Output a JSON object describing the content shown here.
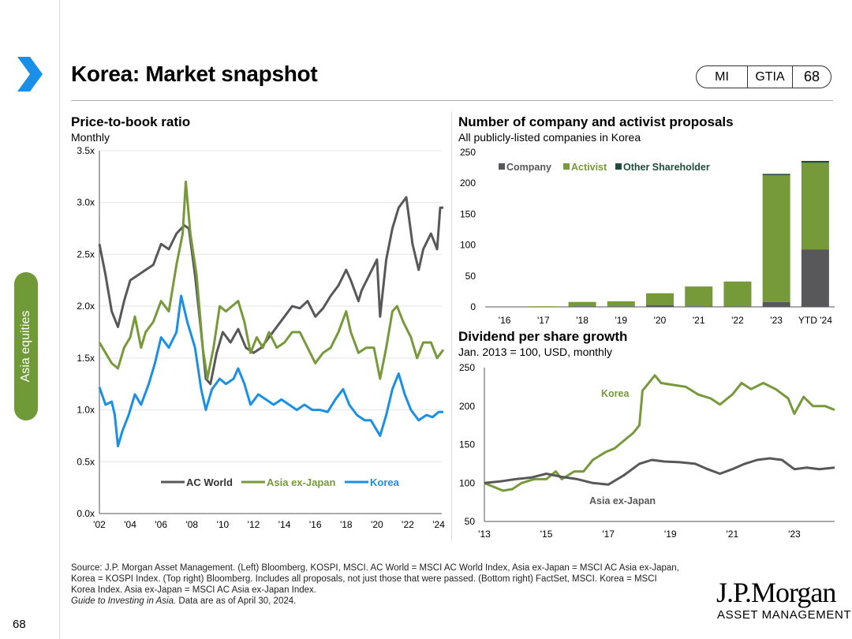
{
  "header": {
    "title": "Korea: Market snapshot",
    "tags": [
      "MI",
      "GTIA",
      "68"
    ]
  },
  "side_tab": {
    "label": "Asia equities"
  },
  "page_number": "68",
  "colors": {
    "ac_world": "#58585a",
    "asia_ex_japan": "#76993a",
    "korea": "#1a8fe8",
    "company": "#58585a",
    "activist": "#76993a",
    "other": "#1e4d3a",
    "side_tab": "#6f9a37",
    "chevron": "#1a8fe8"
  },
  "charts_text": {
    "pb": {
      "title": "Price-to-book ratio",
      "subtitle": "Monthly"
    },
    "proposals": {
      "title": "Number of company and activist proposals",
      "subtitle": "All publicly-listed companies in Korea"
    },
    "dps": {
      "title": "Dividend per share growth",
      "subtitle": "Jan. 2013 = 100, USD, monthly"
    }
  },
  "chart_data": [
    {
      "id": "pb",
      "type": "line",
      "title": "Price-to-book ratio",
      "subtitle": "Monthly",
      "y_tick_labels": [
        "0.0x",
        "0.5x",
        "1.0x",
        "1.5x",
        "2.0x",
        "2.5x",
        "3.0x",
        "3.5x"
      ],
      "ylim": [
        0,
        3.5
      ],
      "xlim": [
        2002,
        2024.2
      ],
      "x_tick_labels": [
        "'02",
        "'04",
        "'06",
        "'08",
        "'10",
        "'12",
        "'14",
        "'16",
        "'18",
        "'20",
        "'22",
        "'24"
      ],
      "legend": [
        "AC World",
        "Asia ex-Japan",
        "Korea"
      ],
      "series": [
        {
          "name": "AC World",
          "color": "#58585a",
          "points": [
            [
              2002,
              2.6
            ],
            [
              2002.4,
              2.3
            ],
            [
              2002.8,
              1.95
            ],
            [
              2003.2,
              1.8
            ],
            [
              2003.6,
              2.05
            ],
            [
              2004,
              2.25
            ],
            [
              2004.5,
              2.3
            ],
            [
              2005,
              2.35
            ],
            [
              2005.5,
              2.4
            ],
            [
              2006,
              2.6
            ],
            [
              2006.5,
              2.55
            ],
            [
              2007,
              2.7
            ],
            [
              2007.5,
              2.78
            ],
            [
              2007.8,
              2.75
            ],
            [
              2008.2,
              2.3
            ],
            [
              2008.6,
              1.75
            ],
            [
              2008.9,
              1.3
            ],
            [
              2009.2,
              1.25
            ],
            [
              2009.6,
              1.55
            ],
            [
              2010,
              1.75
            ],
            [
              2010.5,
              1.65
            ],
            [
              2011,
              1.78
            ],
            [
              2011.5,
              1.6
            ],
            [
              2012,
              1.55
            ],
            [
              2012.5,
              1.6
            ],
            [
              2013,
              1.7
            ],
            [
              2013.5,
              1.8
            ],
            [
              2014,
              1.9
            ],
            [
              2014.5,
              2.0
            ],
            [
              2015,
              1.98
            ],
            [
              2015.5,
              2.05
            ],
            [
              2016,
              1.9
            ],
            [
              2016.5,
              1.98
            ],
            [
              2017,
              2.1
            ],
            [
              2017.5,
              2.2
            ],
            [
              2018,
              2.35
            ],
            [
              2018.3,
              2.25
            ],
            [
              2018.8,
              2.05
            ],
            [
              2019,
              2.15
            ],
            [
              2019.5,
              2.3
            ],
            [
              2020,
              2.45
            ],
            [
              2020.2,
              1.9
            ],
            [
              2020.6,
              2.45
            ],
            [
              2021,
              2.75
            ],
            [
              2021.4,
              2.95
            ],
            [
              2021.9,
              3.05
            ],
            [
              2022.3,
              2.6
            ],
            [
              2022.7,
              2.35
            ],
            [
              2023,
              2.55
            ],
            [
              2023.5,
              2.7
            ],
            [
              2023.9,
              2.55
            ],
            [
              2024.1,
              2.95
            ],
            [
              2024.3,
              2.95
            ]
          ]
        },
        {
          "name": "Asia ex-Japan",
          "color": "#76993a",
          "points": [
            [
              2002,
              1.65
            ],
            [
              2002.4,
              1.55
            ],
            [
              2002.8,
              1.45
            ],
            [
              2003.2,
              1.4
            ],
            [
              2003.6,
              1.6
            ],
            [
              2004,
              1.7
            ],
            [
              2004.3,
              1.9
            ],
            [
              2004.7,
              1.6
            ],
            [
              2005,
              1.75
            ],
            [
              2005.5,
              1.85
            ],
            [
              2006,
              2.05
            ],
            [
              2006.5,
              1.95
            ],
            [
              2007,
              2.4
            ],
            [
              2007.4,
              2.7
            ],
            [
              2007.6,
              3.2
            ],
            [
              2007.9,
              2.7
            ],
            [
              2008.3,
              2.3
            ],
            [
              2008.7,
              1.6
            ],
            [
              2009,
              1.3
            ],
            [
              2009.4,
              1.6
            ],
            [
              2009.8,
              2.0
            ],
            [
              2010.2,
              1.95
            ],
            [
              2010.6,
              2.0
            ],
            [
              2011,
              2.05
            ],
            [
              2011.4,
              1.85
            ],
            [
              2011.8,
              1.55
            ],
            [
              2012.2,
              1.7
            ],
            [
              2012.6,
              1.6
            ],
            [
              2013,
              1.75
            ],
            [
              2013.5,
              1.6
            ],
            [
              2014,
              1.65
            ],
            [
              2014.5,
              1.75
            ],
            [
              2015,
              1.75
            ],
            [
              2015.5,
              1.6
            ],
            [
              2016,
              1.45
            ],
            [
              2016.5,
              1.55
            ],
            [
              2017,
              1.6
            ],
            [
              2017.5,
              1.75
            ],
            [
              2018,
              1.95
            ],
            [
              2018.3,
              1.75
            ],
            [
              2018.8,
              1.55
            ],
            [
              2019.3,
              1.6
            ],
            [
              2019.8,
              1.6
            ],
            [
              2020.2,
              1.3
            ],
            [
              2020.6,
              1.6
            ],
            [
              2021,
              1.95
            ],
            [
              2021.3,
              2.0
            ],
            [
              2021.7,
              1.85
            ],
            [
              2022.2,
              1.7
            ],
            [
              2022.6,
              1.5
            ],
            [
              2023,
              1.65
            ],
            [
              2023.5,
              1.65
            ],
            [
              2023.9,
              1.5
            ],
            [
              2024.3,
              1.58
            ]
          ]
        },
        {
          "name": "Korea",
          "color": "#1a8fe8",
          "points": [
            [
              2002,
              1.22
            ],
            [
              2002.4,
              1.05
            ],
            [
              2002.8,
              1.08
            ],
            [
              2003,
              0.95
            ],
            [
              2003.2,
              0.65
            ],
            [
              2003.5,
              0.8
            ],
            [
              2003.9,
              0.95
            ],
            [
              2004.3,
              1.15
            ],
            [
              2004.7,
              1.05
            ],
            [
              2005.2,
              1.25
            ],
            [
              2005.6,
              1.45
            ],
            [
              2006,
              1.7
            ],
            [
              2006.5,
              1.6
            ],
            [
              2007,
              1.75
            ],
            [
              2007.3,
              2.1
            ],
            [
              2007.7,
              1.85
            ],
            [
              2008.2,
              1.6
            ],
            [
              2008.6,
              1.2
            ],
            [
              2008.9,
              1.0
            ],
            [
              2009.3,
              1.2
            ],
            [
              2009.8,
              1.3
            ],
            [
              2010.2,
              1.25
            ],
            [
              2010.7,
              1.3
            ],
            [
              2011,
              1.4
            ],
            [
              2011.4,
              1.25
            ],
            [
              2011.8,
              1.05
            ],
            [
              2012.3,
              1.15
            ],
            [
              2012.8,
              1.1
            ],
            [
              2013.3,
              1.05
            ],
            [
              2013.8,
              1.1
            ],
            [
              2014.3,
              1.05
            ],
            [
              2014.8,
              1.0
            ],
            [
              2015.3,
              1.05
            ],
            [
              2015.8,
              1.0
            ],
            [
              2016.3,
              1.0
            ],
            [
              2016.8,
              0.98
            ],
            [
              2017.3,
              1.1
            ],
            [
              2017.8,
              1.2
            ],
            [
              2018.2,
              1.05
            ],
            [
              2018.7,
              0.95
            ],
            [
              2019.2,
              0.9
            ],
            [
              2019.6,
              0.9
            ],
            [
              2020.2,
              0.75
            ],
            [
              2020.6,
              0.95
            ],
            [
              2021,
              1.2
            ],
            [
              2021.4,
              1.35
            ],
            [
              2021.8,
              1.15
            ],
            [
              2022.2,
              1.0
            ],
            [
              2022.7,
              0.9
            ],
            [
              2023.2,
              0.95
            ],
            [
              2023.6,
              0.93
            ],
            [
              2024,
              0.98
            ],
            [
              2024.3,
              0.98
            ]
          ]
        }
      ]
    },
    {
      "id": "proposals",
      "type": "bar",
      "title": "Number of company and activist proposals",
      "subtitle": "All publicly-listed companies in Korea",
      "categories": [
        "'16",
        "'17",
        "'18",
        "'19",
        "'20",
        "'21",
        "'22",
        "'23",
        "YTD '24"
      ],
      "ylim": [
        0,
        250
      ],
      "y_tick_labels": [
        "0",
        "50",
        "100",
        "150",
        "200",
        "250"
      ],
      "series": [
        {
          "name": "Company",
          "color": "#58585a",
          "values": [
            0,
            0,
            1,
            1,
            3,
            1,
            1,
            8,
            93
          ]
        },
        {
          "name": "Activist",
          "color": "#76993a",
          "values": [
            0,
            1,
            7,
            8,
            19,
            32,
            40,
            205,
            140
          ]
        },
        {
          "name": "Other Shareholder",
          "color": "#1e4d3a",
          "values": [
            0,
            0,
            0,
            0,
            0,
            0,
            0,
            2,
            3
          ]
        }
      ]
    },
    {
      "id": "dps",
      "type": "line",
      "title": "Dividend per share growth",
      "subtitle": "Jan. 2013 = 100, USD, monthly",
      "ylim": [
        50,
        250
      ],
      "y_tick_labels": [
        "50",
        "100",
        "150",
        "200",
        "250"
      ],
      "xlim": [
        2013,
        2024.3
      ],
      "x_tick_labels": [
        "'13",
        "'15",
        "'17",
        "'19",
        "'21",
        "'23"
      ],
      "annotations": [
        "Korea",
        "Asia ex-Japan"
      ],
      "series": [
        {
          "name": "Korea",
          "color": "#76993a",
          "points": [
            [
              2013,
              100
            ],
            [
              2013.3,
              95
            ],
            [
              2013.6,
              90
            ],
            [
              2013.9,
              92
            ],
            [
              2014.2,
              100
            ],
            [
              2014.6,
              105
            ],
            [
              2015,
              105
            ],
            [
              2015.3,
              115
            ],
            [
              2015.5,
              105
            ],
            [
              2015.9,
              115
            ],
            [
              2016.2,
              115
            ],
            [
              2016.5,
              130
            ],
            [
              2016.9,
              140
            ],
            [
              2017.2,
              145
            ],
            [
              2017.5,
              155
            ],
            [
              2017.8,
              165
            ],
            [
              2018,
              175
            ],
            [
              2018.1,
              220
            ],
            [
              2018.5,
              240
            ],
            [
              2018.7,
              230
            ],
            [
              2019,
              228
            ],
            [
              2019.5,
              225
            ],
            [
              2019.9,
              215
            ],
            [
              2020.3,
              210
            ],
            [
              2020.6,
              202
            ],
            [
              2021,
              215
            ],
            [
              2021.3,
              230
            ],
            [
              2021.6,
              222
            ],
            [
              2022,
              230
            ],
            [
              2022.4,
              222
            ],
            [
              2022.8,
              210
            ],
            [
              2023,
              190
            ],
            [
              2023.3,
              212
            ],
            [
              2023.6,
              200
            ],
            [
              2024,
              200
            ],
            [
              2024.3,
              195
            ]
          ]
        },
        {
          "name": "Asia ex-Japan",
          "color": "#58585a",
          "points": [
            [
              2013,
              100
            ],
            [
              2013.5,
              102
            ],
            [
              2014,
              105
            ],
            [
              2014.5,
              107
            ],
            [
              2015,
              112
            ],
            [
              2015.5,
              108
            ],
            [
              2016,
              105
            ],
            [
              2016.5,
              100
            ],
            [
              2017,
              98
            ],
            [
              2017.5,
              110
            ],
            [
              2018,
              125
            ],
            [
              2018.4,
              130
            ],
            [
              2018.8,
              128
            ],
            [
              2019.3,
              127
            ],
            [
              2019.8,
              125
            ],
            [
              2020.2,
              118
            ],
            [
              2020.6,
              112
            ],
            [
              2021,
              118
            ],
            [
              2021.4,
              125
            ],
            [
              2021.8,
              130
            ],
            [
              2022.2,
              132
            ],
            [
              2022.6,
              130
            ],
            [
              2023,
              118
            ],
            [
              2023.4,
              120
            ],
            [
              2023.8,
              118
            ],
            [
              2024.3,
              120
            ]
          ]
        }
      ]
    }
  ],
  "source": {
    "lines": [
      "Source: J.P. Morgan Asset Management. (Left) Bloomberg, KOSPI, MSCI. AC World = MSCI AC World Index, Asia ex-Japan = MSCI AC Asia ex-Japan,",
      "Korea = KOSPI Index. (Top right) Bloomberg. Includes all proposals, not just those that were passed. (Bottom right) FactSet, MSCI. Korea = MSCI",
      "Korea Index. Asia ex-Japan = MSCI AC Asia ex-Japan Index."
    ],
    "guide_italic": "Guide to Investing in Asia.",
    "guide_rest": " Data are as of April 30, 2024."
  },
  "logo": {
    "name": "J.P.Morgan",
    "sub": "ASSET MANAGEMENT"
  }
}
